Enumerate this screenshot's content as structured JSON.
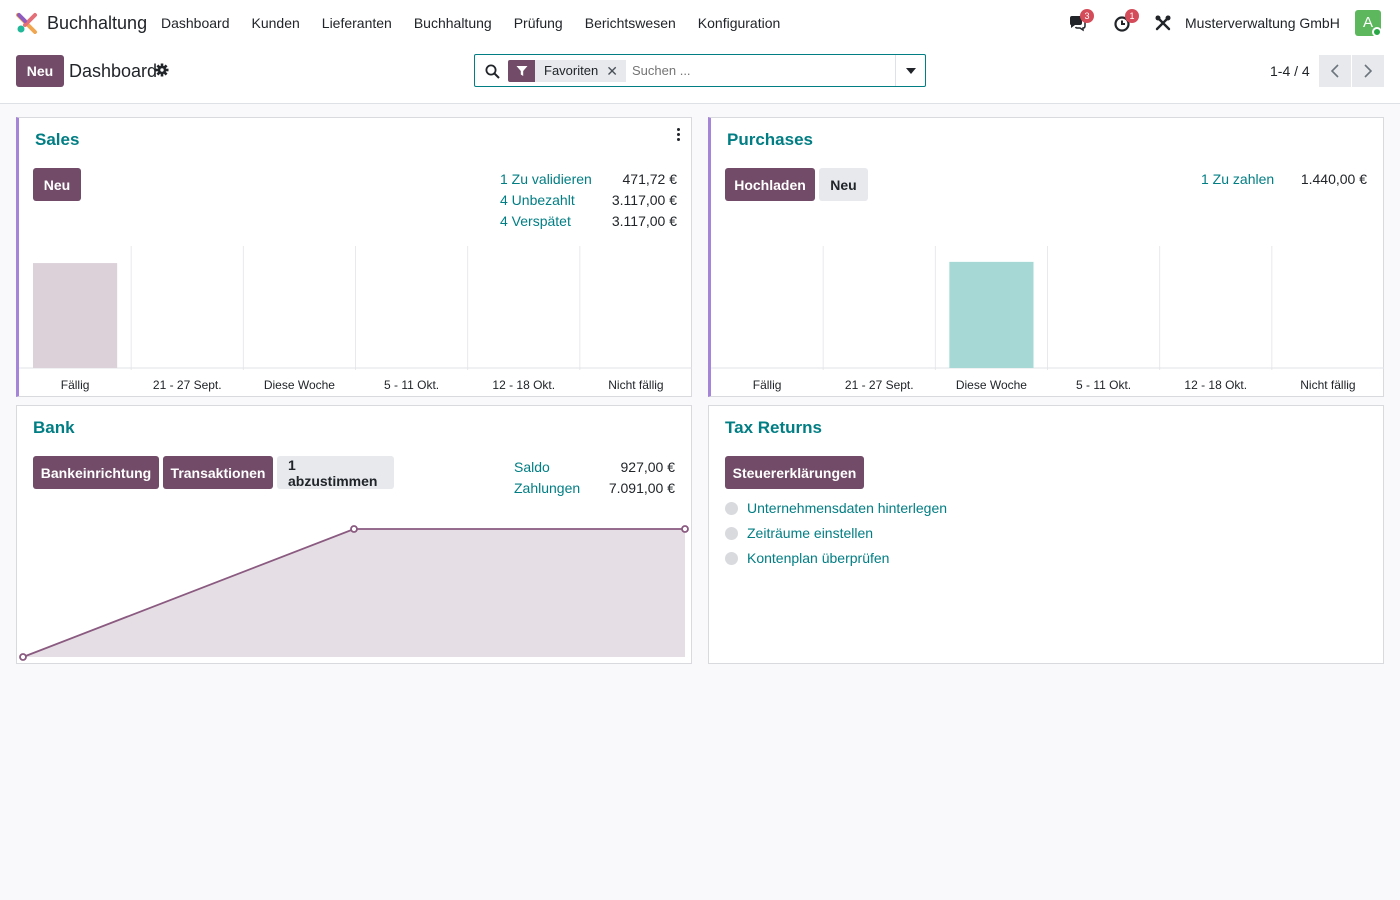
{
  "nav": {
    "app_name": "Buchhaltung",
    "menu": [
      "Dashboard",
      "Kunden",
      "Lieferanten",
      "Buchhaltung",
      "Prüfung",
      "Berichtswesen",
      "Konfiguration"
    ],
    "messages_count": "3",
    "activities_count": "1",
    "company": "Musterverwaltung GmbH",
    "avatar_letter": "A"
  },
  "control_panel": {
    "new_label": "Neu",
    "title": "Dashboard",
    "facet_label": "Favoriten",
    "facet_close": "✕",
    "search_placeholder": "Suchen ...",
    "pager": "1-4 / 4"
  },
  "sales": {
    "title": "Sales",
    "new_label": "Neu",
    "stats": [
      {
        "label": "1 Zu validieren",
        "value": "471,72 €"
      },
      {
        "label": "4 Unbezahlt",
        "value": "3.117,00 €"
      },
      {
        "label": "4 Verspätet",
        "value": "3.117,00 €"
      }
    ]
  },
  "purchases": {
    "title": "Purchases",
    "upload_label": "Hochladen",
    "new_label": "Neu",
    "stats": [
      {
        "label": "1 Zu zahlen",
        "value": "1.440,00 €"
      }
    ]
  },
  "bank": {
    "title": "Bank",
    "buttons": [
      "Bankeinrichtung",
      "Transaktionen",
      "1 abzustimmen"
    ],
    "stats": [
      {
        "label": "Saldo",
        "value": "927,00 €"
      },
      {
        "label": "Zahlungen",
        "value": "7.091,00 €"
      }
    ]
  },
  "tax": {
    "title": "Tax Returns",
    "button": "Steuererklärungen",
    "steps": [
      "Unternehmensdaten hinterlegen",
      "Zeiträume einstellen",
      "Kontenplan überprüfen"
    ]
  },
  "chart_data": [
    {
      "type": "bar",
      "categories": [
        "Fällig",
        "21 - 27 Sept.",
        "Diese Woche",
        "5 - 11 Okt.",
        "12 - 18 Okt.",
        "Nicht fällig"
      ],
      "values": [
        0.86,
        0,
        0,
        0,
        0,
        0
      ],
      "color": "#dcd1d9"
    },
    {
      "type": "bar",
      "categories": [
        "Fällig",
        "21 - 27 Sept.",
        "Diese Woche",
        "5 - 11 Okt.",
        "12 - 18 Okt.",
        "Nicht fällig"
      ],
      "values": [
        0,
        0,
        0.87,
        0,
        0,
        0
      ],
      "color": "#a6d9d6"
    },
    {
      "type": "area",
      "x": [
        0,
        1,
        2
      ],
      "values": [
        0,
        1,
        1
      ],
      "line_color": "#8a5a80",
      "fill_color": "#e6dee5"
    }
  ]
}
